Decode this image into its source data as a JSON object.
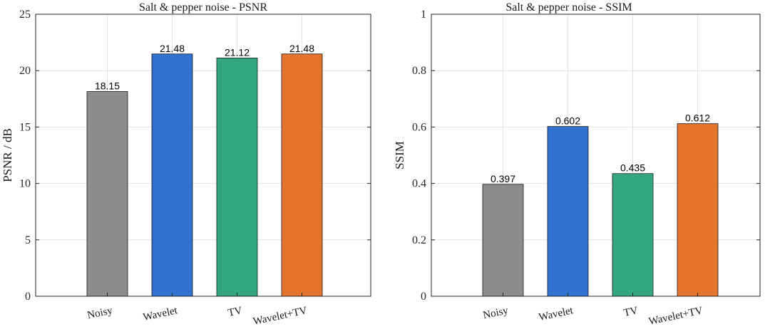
{
  "chart_data": [
    {
      "type": "bar",
      "title": "Salt & pepper noise - PSNR",
      "xlabel": "",
      "ylabel": "PSNR / dB",
      "categories": [
        "Noisy",
        "Wavelet",
        "TV",
        "Wavelet+TV"
      ],
      "values": [
        18.15,
        21.48,
        21.12,
        21.48
      ],
      "value_labels": [
        "18.15",
        "21.48",
        "21.12",
        "21.48"
      ],
      "ylim": [
        0,
        25
      ],
      "yticks": [
        0,
        5,
        10,
        15,
        20,
        25
      ],
      "ytick_labels": [
        "0",
        "5",
        "10",
        "15",
        "20",
        "25"
      ],
      "grid": true,
      "colors": [
        "#8c8c8c",
        "#3271d0",
        "#33a57f",
        "#e5742f"
      ]
    },
    {
      "type": "bar",
      "title": "Salt & pepper noise - SSIM",
      "xlabel": "",
      "ylabel": "SSIM",
      "categories": [
        "Noisy",
        "Wavelet",
        "TV",
        "Wavelet+TV"
      ],
      "values": [
        0.397,
        0.602,
        0.435,
        0.612
      ],
      "value_labels": [
        "0.397",
        "0.602",
        "0.435",
        "0.612"
      ],
      "ylim": [
        0,
        1
      ],
      "yticks": [
        0,
        0.2,
        0.4,
        0.6,
        0.8,
        1
      ],
      "ytick_labels": [
        "0",
        "0.2",
        "0.4",
        "0.6",
        "0.8",
        "1"
      ],
      "grid": true,
      "colors": [
        "#8c8c8c",
        "#3271d0",
        "#33a57f",
        "#e5742f"
      ]
    }
  ]
}
